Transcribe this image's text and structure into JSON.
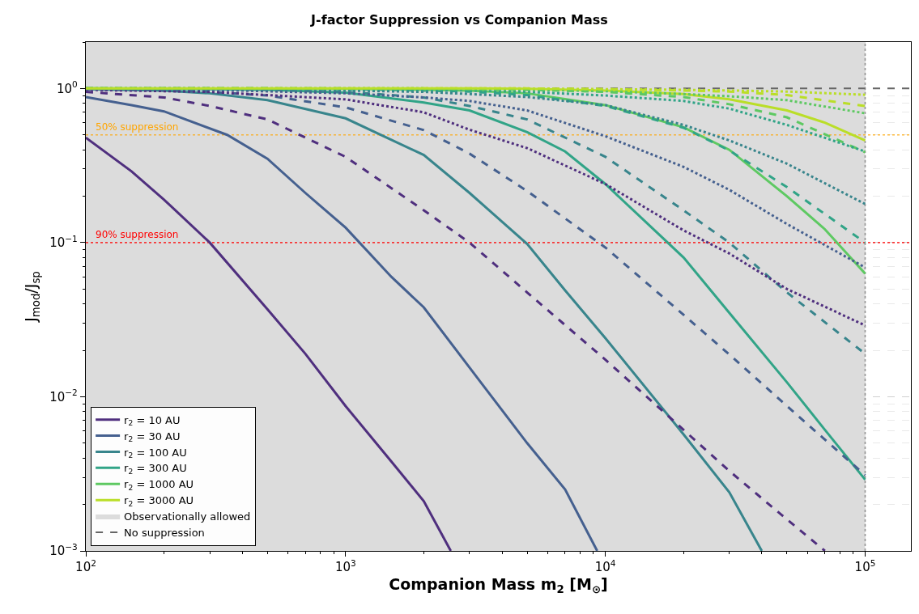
{
  "chart_data": {
    "type": "line",
    "title": "J-factor Suppression vs Companion Mass",
    "xlabel": "Companion Mass m$_{2}$ [M$_{⊙}$]",
    "ylabel": "J$_{mod}$/J$_{sp}$",
    "log": "xy",
    "grid": true,
    "legend": "bottom left",
    "xlim": [
      100,
      150000
    ],
    "xticks": [
      {
        "value": 100,
        "label": "10$^{2}$"
      },
      {
        "value": 1000,
        "label": "10$^{3}$"
      },
      {
        "value": 10000,
        "label": "10$^{4}$"
      },
      {
        "value": 100000,
        "label": "10$^{5}$"
      }
    ],
    "ylim": [
      0.001,
      2
    ],
    "yticks": [
      {
        "value": 0.001,
        "label": "10$^{−3}$"
      },
      {
        "value": 0.01,
        "label": "10$^{−2}$"
      },
      {
        "value": 0.1,
        "label": "10$^{−1}$"
      },
      {
        "value": 1,
        "label": "10$^{0}$"
      }
    ],
    "bands": [
      {
        "axis": "x",
        "from": 100,
        "to": 100000,
        "label": "Observationally allowed",
        "color": "#dcdcdc"
      }
    ],
    "ref_lines": [
      {
        "axis": "y",
        "value": 1,
        "label": "No suppression",
        "color": "#666666",
        "line_style": "dashed"
      },
      {
        "axis": "y",
        "value": 0.5,
        "label": "50% suppression",
        "color": "#ffa500",
        "line_style": "dotted"
      },
      {
        "axis": "y",
        "value": 0.1,
        "label": "90% suppression",
        "color": "#ff0000",
        "line_style": "dotted"
      },
      {
        "axis": "x",
        "value": 100000,
        "color": "#777777",
        "line_style": "dotted"
      }
    ],
    "series": [
      {
        "name": "r$_{2}$ = 10 AU",
        "color": "#4f2f7e",
        "line_style": "solid",
        "x": [
          100,
          150,
          200,
          300,
          500,
          700,
          1000,
          1500,
          2000,
          2540
        ],
        "values": [
          0.48,
          0.29,
          0.19,
          0.1,
          0.037,
          0.019,
          0.0087,
          0.0038,
          0.0021,
          0.001
        ]
      },
      {
        "name": "r$_{2}$ = 30 AU",
        "color": "#45608f",
        "line_style": "solid",
        "x": [
          100,
          150,
          200,
          350,
          500,
          700,
          1000,
          1500,
          2000,
          3500,
          5000,
          7000,
          9300
        ],
        "values": [
          0.88,
          0.78,
          0.71,
          0.5,
          0.35,
          0.21,
          0.125,
          0.06,
          0.038,
          0.011,
          0.005,
          0.0025,
          0.001
        ]
      },
      {
        "name": "r$_{2}$ = 100 AU",
        "color": "#38858c",
        "line_style": "solid",
        "x": [
          100,
          200,
          300,
          500,
          1000,
          2000,
          3000,
          5000,
          7000,
          10000,
          20000,
          30000,
          40000
        ],
        "values": [
          0.99,
          0.97,
          0.93,
          0.84,
          0.64,
          0.37,
          0.21,
          0.098,
          0.049,
          0.024,
          0.0057,
          0.0024,
          0.001
        ]
      },
      {
        "name": "r$_{2}$ = 300 AU",
        "color": "#31a487",
        "line_style": "solid",
        "x": [
          100,
          300,
          500,
          1000,
          2000,
          3000,
          5000,
          7000,
          10000,
          20000,
          30000,
          50000,
          70000,
          100000
        ],
        "values": [
          1.0,
          0.99,
          0.98,
          0.94,
          0.81,
          0.72,
          0.52,
          0.39,
          0.24,
          0.08,
          0.035,
          0.0124,
          0.0061,
          0.0029
        ]
      },
      {
        "name": "r$_{2}$ = 1000 AU",
        "color": "#5ec962",
        "line_style": "solid",
        "x": [
          100,
          1000,
          2000,
          3000,
          5000,
          10000,
          20000,
          30000,
          50000,
          70000,
          100000
        ],
        "values": [
          1.0,
          0.995,
          0.98,
          0.97,
          0.93,
          0.78,
          0.56,
          0.4,
          0.2,
          0.122,
          0.063
        ]
      },
      {
        "name": "r$_{2}$ = 3000 AU",
        "color": "#bade28",
        "line_style": "solid",
        "x": [
          100,
          3000,
          5000,
          10000,
          20000,
          30000,
          50000,
          70000,
          100000
        ],
        "values": [
          1.0,
          1.0,
          0.994,
          0.97,
          0.92,
          0.85,
          0.72,
          0.6,
          0.46
        ]
      },
      {
        "color": "#4f2f7e",
        "line_style": "dashed",
        "x": [
          100,
          200,
          300,
          500,
          1000,
          2000,
          3000,
          5000,
          10000,
          20000,
          30000,
          50000,
          70000
        ],
        "values": [
          0.95,
          0.875,
          0.77,
          0.63,
          0.36,
          0.162,
          0.1,
          0.0475,
          0.0174,
          0.0061,
          0.0033,
          0.0016,
          0.001
        ]
      },
      {
        "color": "#45608f",
        "line_style": "dashed",
        "x": [
          100,
          200,
          300,
          500,
          1000,
          2000,
          3000,
          5000,
          10000,
          20000,
          30000,
          50000,
          100000
        ],
        "values": [
          0.99,
          0.97,
          0.95,
          0.9,
          0.754,
          0.537,
          0.378,
          0.216,
          0.093,
          0.034,
          0.0188,
          0.0087,
          0.0031
        ]
      },
      {
        "color": "#38858c",
        "line_style": "dashed",
        "x": [
          100,
          200,
          300,
          500,
          1000,
          2000,
          3000,
          5000,
          10000,
          20000,
          30000,
          50000,
          100000
        ],
        "values": [
          1.0,
          0.99,
          0.99,
          0.98,
          0.95,
          0.875,
          0.77,
          0.63,
          0.36,
          0.162,
          0.1,
          0.0475,
          0.019
        ]
      },
      {
        "color": "#31a487",
        "line_style": "dashed",
        "x": [
          100,
          200,
          300,
          500,
          1000,
          2000,
          3000,
          5000,
          10000,
          20000,
          30000,
          50000,
          100000
        ],
        "values": [
          1.0,
          1.0,
          1.0,
          1.0,
          0.99,
          0.97,
          0.955,
          0.906,
          0.77,
          0.556,
          0.396,
          0.229,
          0.1
        ]
      },
      {
        "color": "#5ec962",
        "line_style": "dashed",
        "x": [
          100,
          200,
          300,
          500,
          1000,
          2000,
          3000,
          5000,
          10000,
          20000,
          30000,
          50000,
          100000
        ],
        "values": [
          1.0,
          1.0,
          1.0,
          1.0,
          1.0,
          0.99,
          0.99,
          0.98,
          0.95,
          0.88,
          0.79,
          0.65,
          0.386
        ]
      },
      {
        "color": "#bade28",
        "line_style": "dashed",
        "x": [
          100,
          200,
          300,
          500,
          1000,
          2000,
          3000,
          5000,
          10000,
          20000,
          30000,
          50000,
          100000
        ],
        "values": [
          1.0,
          1.0,
          1.0,
          1.0,
          1.0,
          1.0,
          1.0,
          1.0,
          0.99,
          0.97,
          0.955,
          0.906,
          0.77
        ]
      },
      {
        "color": "#4f2f7e",
        "line_style": "dotted",
        "x": [
          100,
          300,
          1000,
          2000,
          3000,
          5000,
          10000,
          20000,
          30000,
          50000,
          100000
        ],
        "values": [
          0.98,
          0.95,
          0.85,
          0.7,
          0.54,
          0.41,
          0.24,
          0.12,
          0.085,
          0.05,
          0.029
        ]
      },
      {
        "color": "#45608f",
        "line_style": "dotted",
        "x": [
          100,
          300,
          1000,
          2000,
          3000,
          5000,
          10000,
          20000,
          30000,
          50000,
          100000
        ],
        "values": [
          0.99,
          0.98,
          0.93,
          0.875,
          0.83,
          0.72,
          0.49,
          0.31,
          0.22,
          0.132,
          0.069
        ]
      },
      {
        "color": "#38858c",
        "line_style": "dotted",
        "x": [
          100,
          300,
          1000,
          2000,
          3000,
          5000,
          10000,
          20000,
          30000,
          50000,
          100000
        ],
        "values": [
          1.0,
          0.99,
          0.97,
          0.95,
          0.92,
          0.88,
          0.78,
          0.58,
          0.46,
          0.325,
          0.178
        ]
      },
      {
        "color": "#31a487",
        "line_style": "dotted",
        "x": [
          100,
          300,
          1000,
          2000,
          3000,
          5000,
          10000,
          20000,
          30000,
          50000,
          100000
        ],
        "values": [
          1.0,
          1.0,
          0.99,
          0.98,
          0.97,
          0.95,
          0.9,
          0.83,
          0.74,
          0.58,
          0.39
        ]
      },
      {
        "color": "#5ec962",
        "line_style": "dotted",
        "x": [
          100,
          300,
          1000,
          2000,
          3000,
          5000,
          10000,
          20000,
          30000,
          50000,
          100000
        ],
        "values": [
          1.0,
          1.0,
          1.0,
          1.0,
          0.99,
          0.98,
          0.96,
          0.92,
          0.89,
          0.84,
          0.69
        ]
      },
      {
        "color": "#bade28",
        "line_style": "dotted",
        "x": [
          100,
          300,
          1000,
          2000,
          3000,
          5000,
          10000,
          20000,
          30000,
          50000,
          100000
        ],
        "values": [
          1.0,
          1.0,
          1.0,
          1.0,
          1.0,
          1.0,
          0.99,
          0.98,
          0.97,
          0.955,
          0.91
        ]
      }
    ]
  }
}
